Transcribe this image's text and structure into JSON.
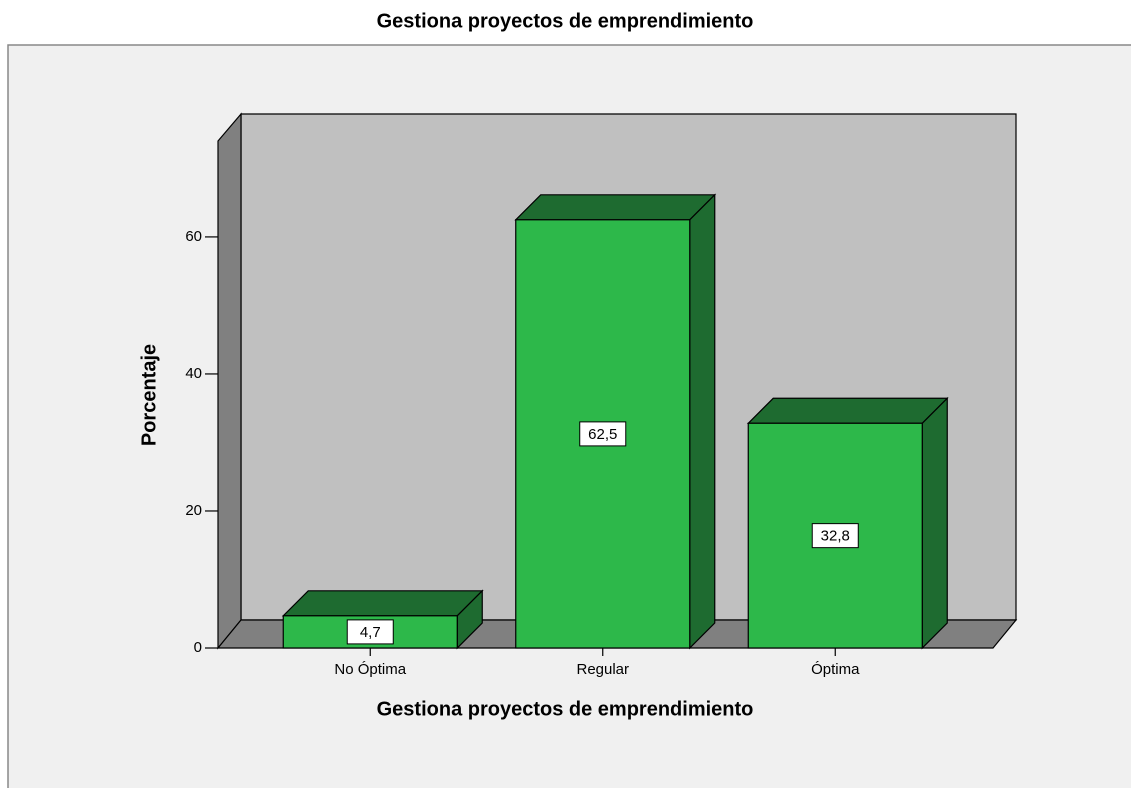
{
  "chart_data": {
    "type": "bar3d",
    "title": "Gestiona proyectos de emprendimiento",
    "x_label": "Gestiona proyectos de emprendimiento",
    "y_label": "Porcentaje",
    "categories": [
      "No Óptima",
      "Regular",
      "Óptima"
    ],
    "values": [
      4.7,
      62.5,
      32.8
    ],
    "value_labels": [
      "4,7",
      "62,5",
      "32,8"
    ],
    "color": "#2db84a",
    "ylim": [
      0,
      74
    ],
    "yticks": [
      0,
      20,
      40,
      60
    ]
  }
}
